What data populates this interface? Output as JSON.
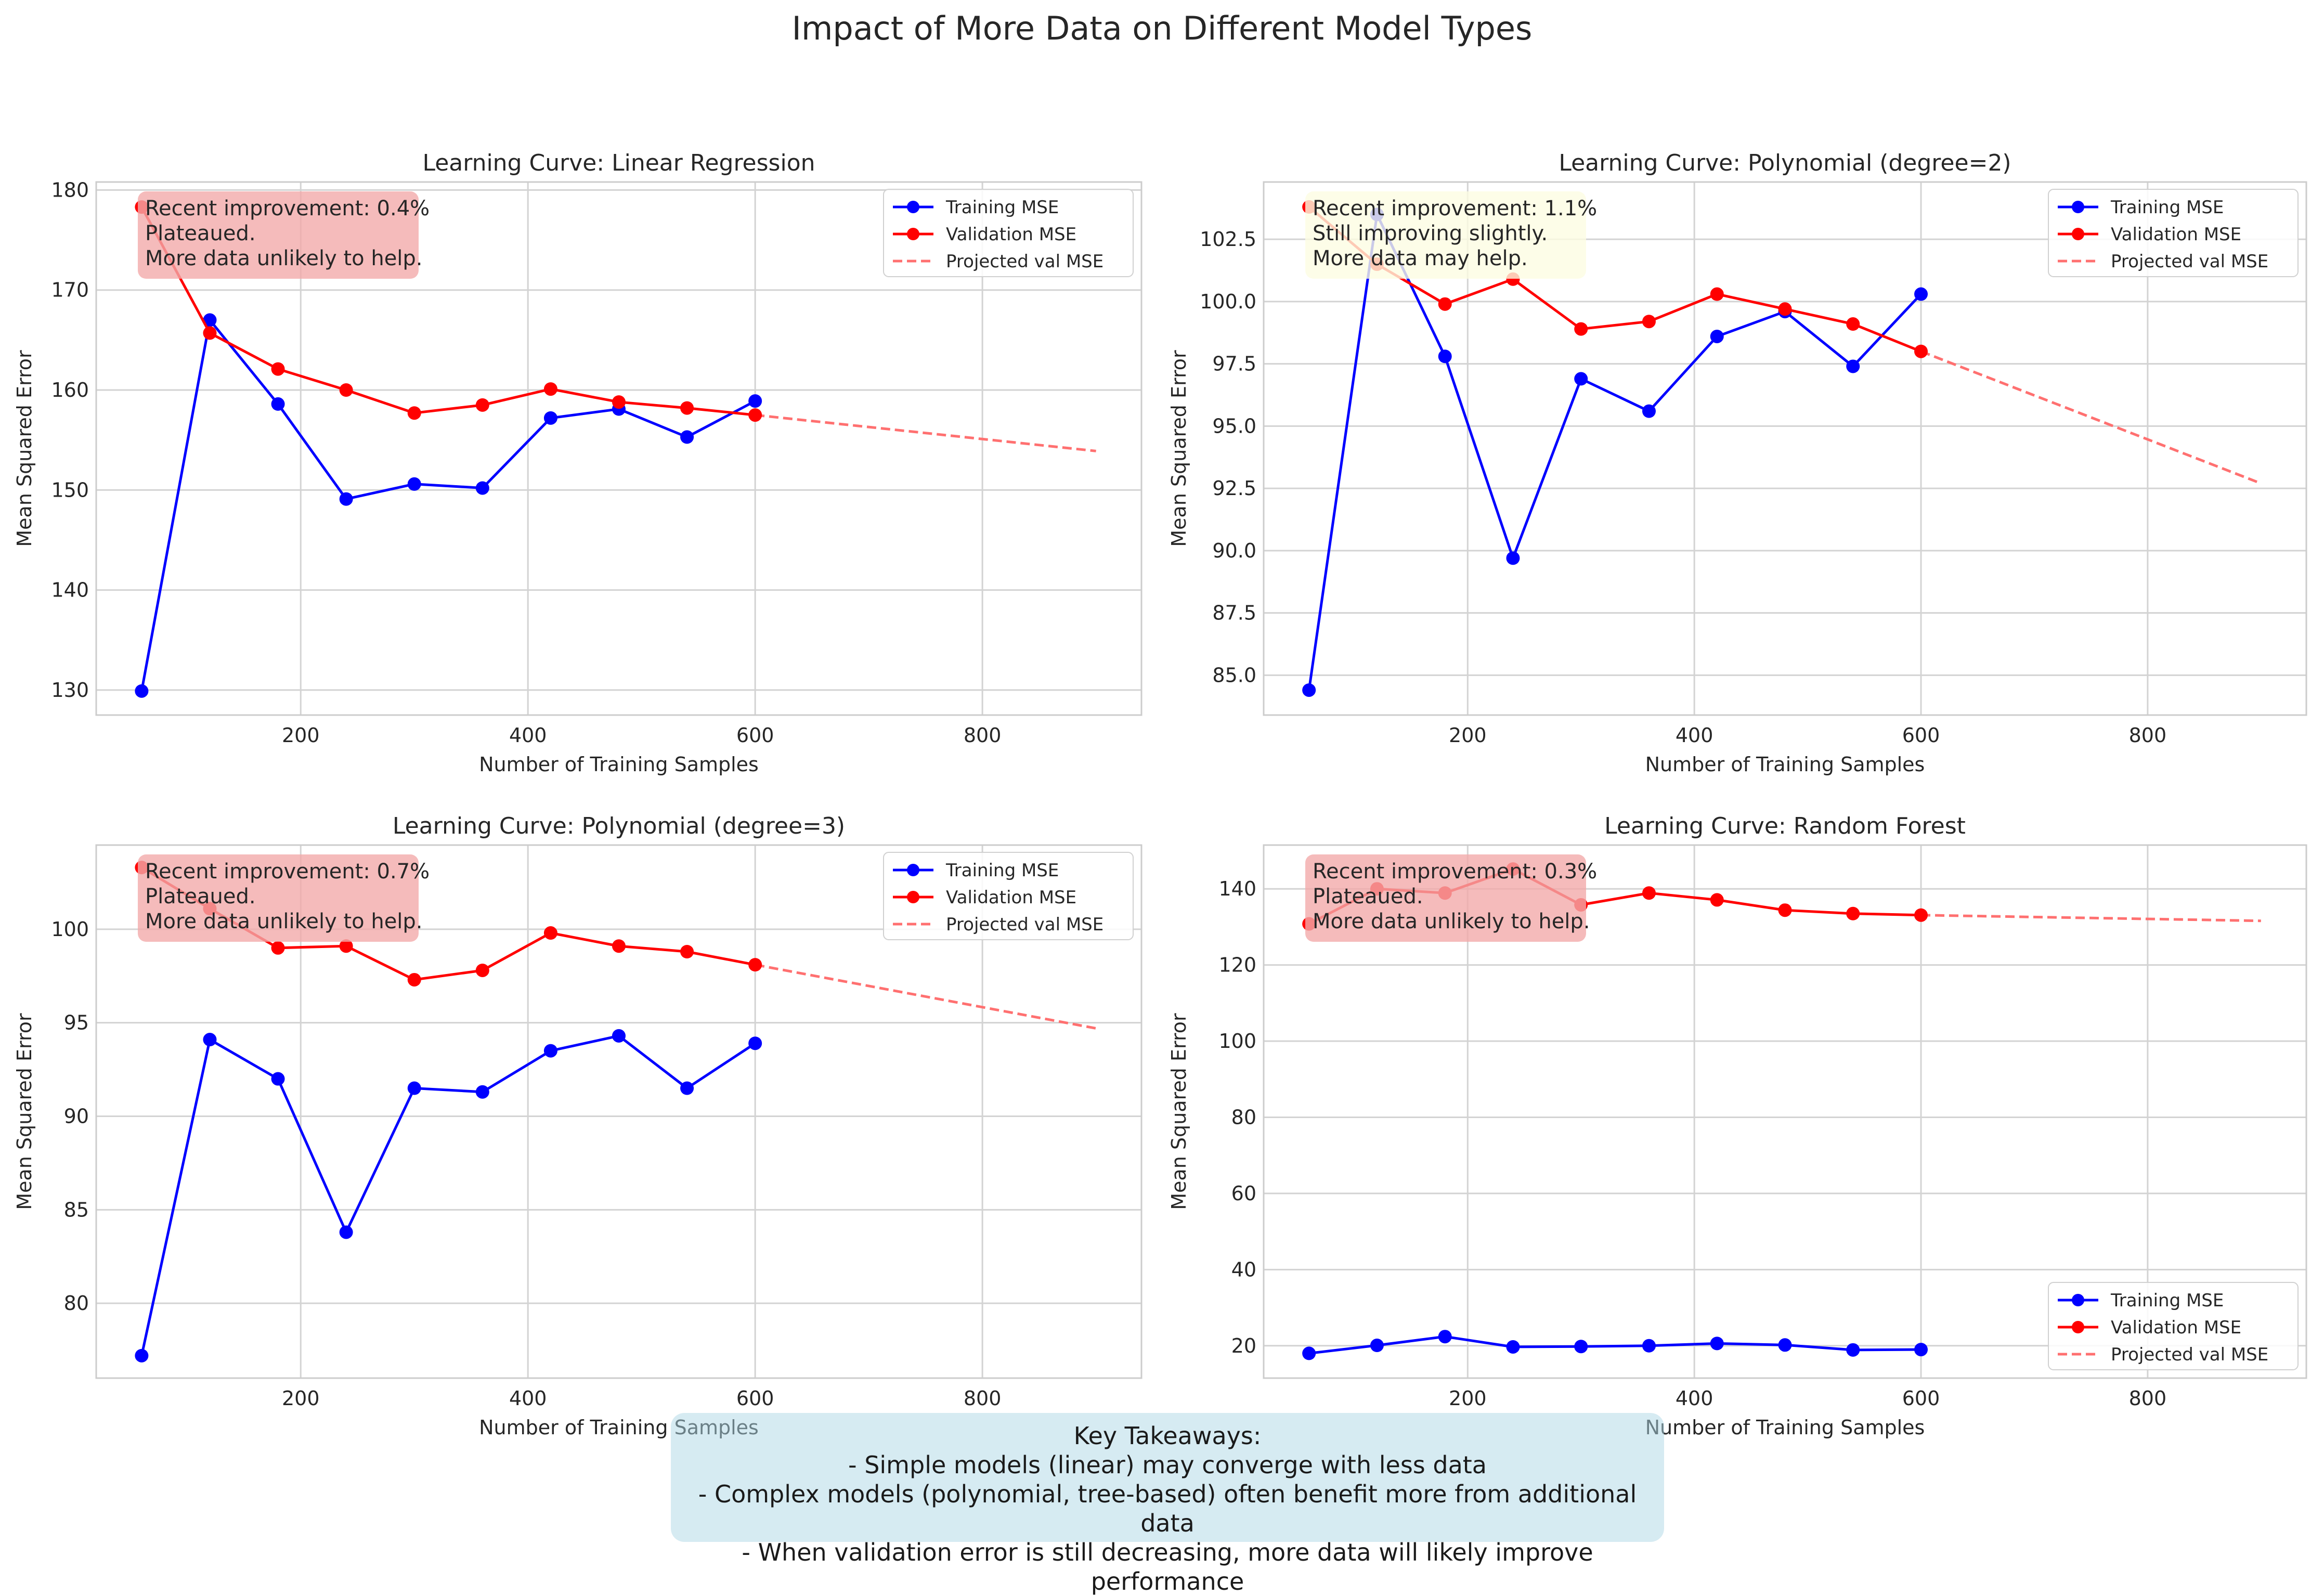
{
  "title": "Impact of More Data on Different Model Types",
  "colors": {
    "training": "#0000ff",
    "validation": "#ff0000",
    "projected": "#ff7070"
  },
  "legend": [
    "Training MSE",
    "Validation MSE",
    "Projected val MSE"
  ],
  "xlabel": "Number of Training Samples",
  "ylabel": "Mean Squared Error",
  "takeaways": {
    "title": "Key Takeaways:",
    "lines": [
      "- Simple models (linear) may converge with less data",
      "- Complex models (polynomial, tree-based) often benefit more from additional data",
      "- When validation error is still decreasing, more data will likely improve performance"
    ]
  },
  "chart_data": [
    {
      "type": "line",
      "title": "Learning Curve: Linear Regression",
      "xlabel": "Number of Training Samples",
      "ylabel": "Mean Squared Error",
      "x": [
        60,
        120,
        180,
        240,
        300,
        360,
        420,
        480,
        540,
        600
      ],
      "series": [
        {
          "name": "Training MSE",
          "values": [
            129.9,
            167.0,
            158.6,
            149.1,
            150.6,
            150.2,
            157.2,
            158.1,
            155.3,
            158.9
          ]
        },
        {
          "name": "Validation MSE",
          "values": [
            178.3,
            165.7,
            162.1,
            160.0,
            157.7,
            158.5,
            160.1,
            158.8,
            158.2,
            157.5
          ]
        },
        {
          "name": "Projected val MSE",
          "x": [
            600,
            900
          ],
          "values": [
            157.5,
            153.9
          ]
        }
      ],
      "xlim": [
        20,
        940
      ],
      "ylim": [
        127.5,
        180.8
      ],
      "xticks": [
        200,
        400,
        600,
        800
      ],
      "yticks": [
        130,
        140,
        150,
        160,
        170,
        180
      ],
      "ytick_labels": [
        "130",
        "140",
        "150",
        "160",
        "170",
        "180"
      ],
      "legend_position": "upper right",
      "annotation": {
        "lines": [
          "Recent improvement: 0.4%",
          "Plateaued.",
          "More data unlikely to help."
        ],
        "color": "#f3aaaa"
      }
    },
    {
      "type": "line",
      "title": "Learning Curve: Polynomial (degree=2)",
      "xlabel": "Number of Training Samples",
      "ylabel": "Mean Squared Error",
      "x": [
        60,
        120,
        180,
        240,
        300,
        360,
        420,
        480,
        540,
        600
      ],
      "series": [
        {
          "name": "Training MSE",
          "values": [
            84.4,
            103.5,
            97.8,
            89.7,
            96.9,
            95.6,
            98.6,
            99.6,
            97.4,
            100.3
          ]
        },
        {
          "name": "Validation MSE",
          "values": [
            103.8,
            101.5,
            99.9,
            100.9,
            98.9,
            99.2,
            100.3,
            99.7,
            99.1,
            98.0
          ]
        },
        {
          "name": "Projected val MSE",
          "x": [
            600,
            900
          ],
          "values": [
            98.0,
            92.7
          ]
        }
      ],
      "xlim": [
        20,
        940
      ],
      "ylim": [
        83.4,
        104.8
      ],
      "xticks": [
        200,
        400,
        600,
        800
      ],
      "yticks": [
        85,
        87.5,
        90,
        92.5,
        95,
        97.5,
        100,
        102.5
      ],
      "ytick_labels": [
        "85.0",
        "87.5",
        "90.0",
        "92.5",
        "95.0",
        "97.5",
        "100.0",
        "102.5"
      ],
      "legend_position": "upper right",
      "annotation": {
        "lines": [
          "Recent improvement: 1.1%",
          "Still improving slightly.",
          "More data may help."
        ],
        "color": "#fdfce2"
      }
    },
    {
      "type": "line",
      "title": "Learning Curve: Polynomial (degree=3)",
      "xlabel": "Number of Training Samples",
      "ylabel": "Mean Squared Error",
      "x": [
        60,
        120,
        180,
        240,
        300,
        360,
        420,
        480,
        540,
        600
      ],
      "series": [
        {
          "name": "Training MSE",
          "values": [
            77.2,
            94.1,
            92.0,
            83.8,
            91.5,
            91.3,
            93.5,
            94.3,
            91.5,
            93.9
          ]
        },
        {
          "name": "Validation MSE",
          "values": [
            103.3,
            101.1,
            99.0,
            99.1,
            97.3,
            97.8,
            99.8,
            99.1,
            98.8,
            98.1
          ]
        },
        {
          "name": "Projected val MSE",
          "x": [
            600,
            900
          ],
          "values": [
            98.1,
            94.7
          ]
        }
      ],
      "xlim": [
        20,
        940
      ],
      "ylim": [
        76.0,
        104.5
      ],
      "xticks": [
        200,
        400,
        600,
        800
      ],
      "yticks": [
        80,
        85,
        90,
        95,
        100
      ],
      "ytick_labels": [
        "80",
        "85",
        "90",
        "95",
        "100"
      ],
      "legend_position": "upper right",
      "annotation": {
        "lines": [
          "Recent improvement: 0.7%",
          "Plateaued.",
          "More data unlikely to help."
        ],
        "color": "#f3aaaa"
      }
    },
    {
      "type": "line",
      "title": "Learning Curve: Random Forest",
      "xlabel": "Number of Training Samples",
      "ylabel": "Mean Squared Error",
      "x": [
        60,
        120,
        180,
        240,
        300,
        360,
        420,
        480,
        540,
        600
      ],
      "series": [
        {
          "name": "Training MSE",
          "values": [
            18.0,
            20.1,
            22.4,
            19.7,
            19.8,
            20.0,
            20.6,
            20.2,
            18.9,
            19.0
          ]
        },
        {
          "name": "Validation MSE",
          "values": [
            130.8,
            140.0,
            138.9,
            145.2,
            135.8,
            138.9,
            137.1,
            134.4,
            133.5,
            133.1
          ]
        },
        {
          "name": "Projected val MSE",
          "x": [
            600,
            900
          ],
          "values": [
            133.1,
            131.6
          ]
        }
      ],
      "xlim": [
        20,
        940
      ],
      "ylim": [
        11.5,
        151.5
      ],
      "xticks": [
        200,
        400,
        600,
        800
      ],
      "yticks": [
        20,
        40,
        60,
        80,
        100,
        120,
        140
      ],
      "ytick_labels": [
        "20",
        "40",
        "60",
        "80",
        "100",
        "120",
        "140"
      ],
      "legend_position": "lower right",
      "annotation": {
        "lines": [
          "Recent improvement: 0.3%",
          "Plateaued.",
          "More data unlikely to help."
        ],
        "color": "#f3aaaa"
      }
    }
  ]
}
